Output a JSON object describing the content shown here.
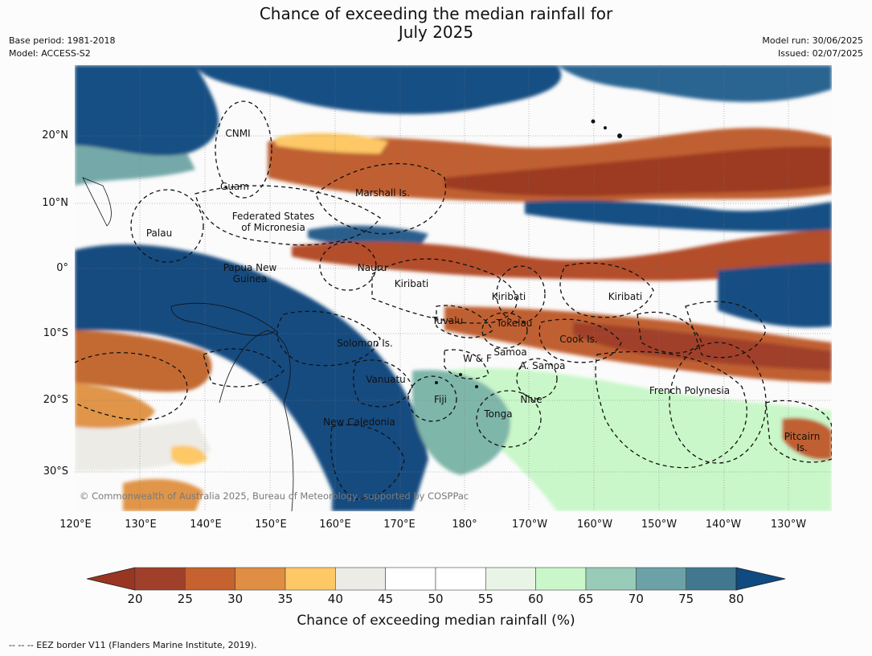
{
  "title": "Chance of exceeding the median rainfall for",
  "subtitle": "July 2025",
  "meta_left": {
    "base_period": "Base period: 1981-2018",
    "model": "Model: ACCESS-S2"
  },
  "meta_right": {
    "model_run": "Model run: 30/06/2025",
    "issued": "Issued: 02/07/2025"
  },
  "latitude_labels": [
    "20°N",
    "10°N",
    "0°",
    "10°S",
    "20°S",
    "30°S"
  ],
  "longitude_labels": [
    "120°E",
    "130°E",
    "140°E",
    "150°E",
    "160°E",
    "170°E",
    "180°",
    "170°W",
    "160°W",
    "150°W",
    "140°W",
    "130°W"
  ],
  "places": {
    "cnmi": "CNMI",
    "guam": "Guam",
    "marshall": "Marshall Is.",
    "micronesia_1": "Federated States",
    "micronesia_2": "of Micronesia",
    "palau": "Palau",
    "png_1": "Papua New",
    "png_2": "Guinea",
    "nauru": "Nauru",
    "kiribati_w": "Kiribati",
    "kiribati_c": "Kiribati",
    "kiribati_e": "Kiribati",
    "tuvalu": "Tuvalu",
    "tokelau": "Tokelau",
    "cook": "Cook Is.",
    "solomon": "Solomon Is.",
    "wf": "W & F",
    "samoa": "Samoa",
    "asamoa": "A. Samoa",
    "vanuatu": "Vanuatu",
    "fiji": "Fiji",
    "niue": "Niue",
    "tonga": "Tonga",
    "french_polynesia": "French Polynesia",
    "new_caledonia": "New Caledonia",
    "pitcairn_1": "Pitcairn",
    "pitcairn_2": "Is."
  },
  "copyright": "© Commonwealth of Australia 2025, Bureau of Meteorology, supported by COSPPac",
  "colorbar": {
    "ticks": [
      "20",
      "25",
      "30",
      "35",
      "40",
      "45",
      "50",
      "55",
      "60",
      "65",
      "70",
      "75",
      "80"
    ],
    "colors": [
      "#a0402a",
      "#c5622f",
      "#df8e43",
      "#fdc865",
      "#ecebe6",
      "#ffffff",
      "#ffffff",
      "#e8f5e6",
      "#c9f7c9",
      "#98cbb8",
      "#6ba1a7",
      "#42788f"
    ],
    "under_color": "#983621",
    "over_color": "#0f4a80",
    "label": "Chance of exceeding median rainfall (%)"
  },
  "footnote": "--  --  -- EEZ border V11 (Flanders Marine Institute, 2019)."
}
